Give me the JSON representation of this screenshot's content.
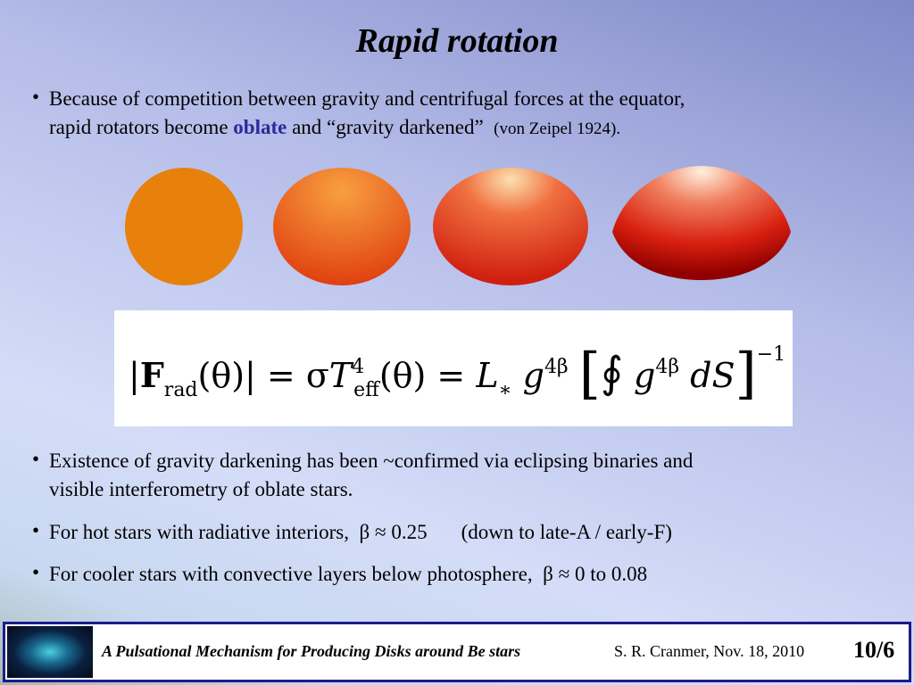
{
  "title": "Rapid rotation",
  "bullets": [
    {
      "lines": [
        [
          "Because of competition between gravity and centrifugal forces at the equator,"
        ],
        [
          "rapid rotators become ",
          "oblate",
          " and “gravity darkened”",
          "(von Zeipel 1924)."
        ]
      ]
    },
    {
      "lines": [
        [
          "Existence of gravity darkening has been ~confirmed via eclipsing binaries and"
        ],
        [
          "visible interferometry of oblate stars."
        ]
      ]
    },
    {
      "lines": [
        [
          "For hot stars with radiative interiors,",
          "β ≈ 0.25",
          "(down to late-A / early-F)"
        ]
      ]
    },
    {
      "lines": [
        [
          "For cooler stars with convective layers below photosphere,",
          "β ≈ 0 to 0.08"
        ]
      ]
    }
  ],
  "equation": [
    "|",
    "F",
    "rad",
    "(θ)| = σ",
    "T",
    "4",
    "eff",
    "(θ)  =  ",
    "L",
    "∗",
    " g",
    "4β",
    "[",
    "∮",
    " g",
    "4β",
    " dS",
    "]",
    "−1"
  ],
  "footer": {
    "talk": "A Pulsational Mechanism for Producing Disks around Be stars",
    "author": "S. R. Cranmer, Nov. 18, 2010",
    "page": "10/6"
  }
}
